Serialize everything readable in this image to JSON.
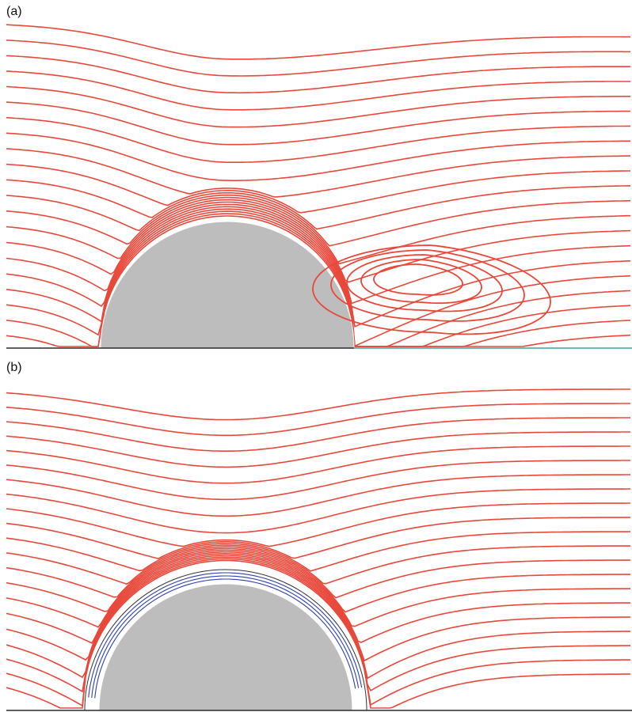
{
  "panels": [
    {
      "label": "(a)"
    },
    {
      "label": "(b)"
    }
  ],
  "colors": {
    "streamline": "#e8483a",
    "inner_streamline": "#2f3fb0",
    "body_fill": "#bdbdbd",
    "wall": "#2a2a2a",
    "axis": "#3aa0b0"
  }
}
